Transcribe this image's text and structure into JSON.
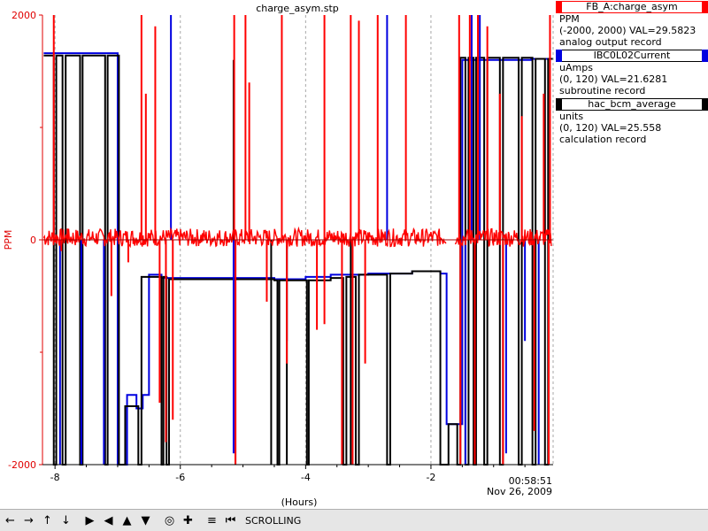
{
  "chart_data": {
    "type": "line",
    "title": "charge_asym.stp",
    "xlabel": "(Hours)",
    "ylabel": "PPM",
    "xlim": [
      -8.2,
      -0.05
    ],
    "ylim": [
      -2000,
      2000
    ],
    "x_ticks": [
      -8,
      -6,
      -4,
      -2
    ],
    "y_tick_labels": [
      "2000",
      "0",
      "-2000"
    ],
    "y_ticks_unlabeled": [
      1000,
      -1000
    ],
    "time_label": "00:58:51",
    "date_label": "Nov 26, 2009",
    "grid": true,
    "axis_color": "#e00000",
    "series": [
      {
        "name": "FB_A:charge_asym",
        "color": "#ff0000",
        "units": "PPM",
        "range_text": "(-2000, 2000) VAL=29.5823",
        "record_type": "analog output record",
        "baseline_mean": 20,
        "noise_amplitude": 80,
        "gaps": [
          [
            -1.75,
            -1.62
          ]
        ],
        "spikes": [
          {
            "x": -8.02,
            "y": 2000
          },
          {
            "x": -7.9,
            "y": -100
          },
          {
            "x": -7.8,
            "y": 100
          },
          {
            "x": -7.1,
            "y": -500
          },
          {
            "x": -6.83,
            "y": -200
          },
          {
            "x": -6.62,
            "y": 2000
          },
          {
            "x": -6.55,
            "y": 1300
          },
          {
            "x": -6.4,
            "y": 1900
          },
          {
            "x": -6.33,
            "y": -1450
          },
          {
            "x": -6.23,
            "y": -1800
          },
          {
            "x": -6.12,
            "y": -1600
          },
          {
            "x": -5.14,
            "y": 2000
          },
          {
            "x": -5.12,
            "y": -2000
          },
          {
            "x": -4.96,
            "y": 2000
          },
          {
            "x": -4.9,
            "y": 1400
          },
          {
            "x": -4.62,
            "y": -550
          },
          {
            "x": -4.38,
            "y": 2000
          },
          {
            "x": -4.3,
            "y": -1100
          },
          {
            "x": -3.82,
            "y": -800
          },
          {
            "x": -3.7,
            "y": 2000
          },
          {
            "x": -3.7,
            "y": -750
          },
          {
            "x": -3.42,
            "y": -2000
          },
          {
            "x": -3.28,
            "y": 2000
          },
          {
            "x": -3.25,
            "y": -2000
          },
          {
            "x": -3.15,
            "y": 1950
          },
          {
            "x": -3.05,
            "y": -1100
          },
          {
            "x": -2.85,
            "y": 2000
          },
          {
            "x": -2.4,
            "y": 2000
          },
          {
            "x": -1.55,
            "y": 2000
          },
          {
            "x": -1.53,
            "y": -2000
          },
          {
            "x": -1.38,
            "y": 2000
          },
          {
            "x": -1.3,
            "y": -2000
          },
          {
            "x": -1.25,
            "y": 2000
          },
          {
            "x": -1.1,
            "y": 1900
          },
          {
            "x": -0.9,
            "y": 1300
          },
          {
            "x": -0.85,
            "y": -2000
          },
          {
            "x": -0.55,
            "y": 1100
          },
          {
            "x": -0.35,
            "y": -1700
          },
          {
            "x": -0.2,
            "y": 1300
          },
          {
            "x": -0.12,
            "y": -2000
          },
          {
            "x": -0.1,
            "y": 2000
          }
        ]
      },
      {
        "name": "IBC0L02Current",
        "color": "#0000e0",
        "units": "uAmps",
        "range_text": "(0, 120) VAL=21.6281",
        "record_type": "subroutine record",
        "steps": [
          [
            -8.18,
            1660
          ],
          [
            -7.0,
            -2000
          ],
          [
            -6.85,
            -1380
          ],
          [
            -6.7,
            -1500
          ],
          [
            -6.6,
            -1380
          ],
          [
            -6.5,
            -310
          ],
          [
            -6.3,
            -340
          ],
          [
            -5.5,
            -340
          ],
          [
            -4.5,
            -350
          ],
          [
            -4.0,
            -330
          ],
          [
            -3.6,
            -310
          ],
          [
            -3.0,
            -300
          ],
          [
            -2.3,
            -280
          ],
          [
            -1.85,
            -300
          ],
          [
            -1.75,
            -1640
          ],
          [
            -1.5,
            1600
          ],
          [
            -0.4,
            1610
          ],
          [
            -0.05,
            1610
          ]
        ],
        "spikes": [
          {
            "x": -7.92,
            "y": -2000
          },
          {
            "x": -7.58,
            "y": -2000
          },
          {
            "x": -7.22,
            "y": -2000
          },
          {
            "x": -6.15,
            "y": 2000
          },
          {
            "x": -5.15,
            "y": -1900
          },
          {
            "x": -4.3,
            "y": -900
          },
          {
            "x": -2.7,
            "y": 2000
          },
          {
            "x": -1.45,
            "y": -2000
          },
          {
            "x": -1.35,
            "y": 2000
          },
          {
            "x": -1.22,
            "y": 2000
          },
          {
            "x": -0.8,
            "y": -1900
          },
          {
            "x": -0.5,
            "y": -900
          },
          {
            "x": -0.28,
            "y": -2000
          }
        ]
      },
      {
        "name": "hac_bcm_average",
        "color": "#000000",
        "units": "units",
        "range_text": "(0, 120) VAL=25.558",
        "record_type": "calculation record",
        "steps": [
          [
            -8.18,
            1640
          ],
          [
            -8.02,
            -2000
          ],
          [
            -7.98,
            1640
          ],
          [
            -7.88,
            -2000
          ],
          [
            -7.83,
            1640
          ],
          [
            -7.6,
            -2000
          ],
          [
            -7.56,
            1640
          ],
          [
            -7.2,
            -2000
          ],
          [
            -7.16,
            1640
          ],
          [
            -6.98,
            -2000
          ],
          [
            -6.88,
            -1480
          ],
          [
            -6.7,
            -1480
          ],
          [
            -6.67,
            -2000
          ],
          [
            -6.62,
            -330
          ],
          [
            -6.32,
            -330
          ],
          [
            -6.3,
            -2000
          ],
          [
            -6.27,
            -330
          ],
          [
            -6.22,
            -2000
          ],
          [
            -6.18,
            -350
          ],
          [
            -5.5,
            -350
          ],
          [
            -4.5,
            -360
          ],
          [
            -4.45,
            -2000
          ],
          [
            -4.42,
            -360
          ],
          [
            -4.0,
            -360
          ],
          [
            -3.98,
            -2000
          ],
          [
            -3.95,
            -360
          ],
          [
            -3.6,
            -340
          ],
          [
            -3.4,
            -2000
          ],
          [
            -3.35,
            -330
          ],
          [
            -3.2,
            -2000
          ],
          [
            -3.15,
            -310
          ],
          [
            -2.7,
            -2000
          ],
          [
            -2.65,
            -300
          ],
          [
            -2.3,
            -280
          ],
          [
            -1.9,
            -280
          ],
          [
            -1.85,
            -2000
          ],
          [
            -1.72,
            -1640
          ],
          [
            -1.58,
            -2000
          ],
          [
            -1.53,
            1620
          ],
          [
            -1.45,
            -2000
          ],
          [
            -1.4,
            1620
          ],
          [
            -1.32,
            -2000
          ],
          [
            -1.28,
            1620
          ],
          [
            -1.15,
            -2000
          ],
          [
            -1.1,
            1620
          ],
          [
            -0.9,
            -2000
          ],
          [
            -0.85,
            1620
          ],
          [
            -0.6,
            -2000
          ],
          [
            -0.55,
            1620
          ],
          [
            -0.38,
            -2000
          ],
          [
            -0.33,
            1610
          ],
          [
            -0.18,
            -2000
          ],
          [
            -0.13,
            1610
          ],
          [
            -0.05,
            1610
          ]
        ],
        "spikes": [
          {
            "x": -5.15,
            "y": 1600
          },
          {
            "x": -5.12,
            "y": -2000
          },
          {
            "x": -4.55,
            "y": -2000
          },
          {
            "x": -4.3,
            "y": -2000
          },
          {
            "x": -3.28,
            "y": -2000
          }
        ]
      }
    ]
  },
  "toolbar": {
    "buttons": [
      {
        "name": "pan-left-icon",
        "glyph": "←"
      },
      {
        "name": "pan-right-icon",
        "glyph": "→"
      },
      {
        "name": "pan-up-icon",
        "glyph": "↑"
      },
      {
        "name": "pan-down-icon",
        "glyph": "↓"
      },
      {
        "name": "zoom-in-x-icon",
        "glyph": "▶"
      },
      {
        "name": "zoom-out-x-icon",
        "glyph": "◀"
      },
      {
        "name": "zoom-in-y-icon",
        "glyph": "▲"
      },
      {
        "name": "zoom-out-y-icon",
        "glyph": "▼"
      },
      {
        "name": "reset-icon",
        "glyph": "◎"
      },
      {
        "name": "add-icon",
        "glyph": "✚"
      },
      {
        "name": "toggle-plot-icon",
        "glyph": "≡"
      },
      {
        "name": "previous-icon",
        "glyph": "⏮"
      }
    ],
    "status": "SCROLLING"
  }
}
